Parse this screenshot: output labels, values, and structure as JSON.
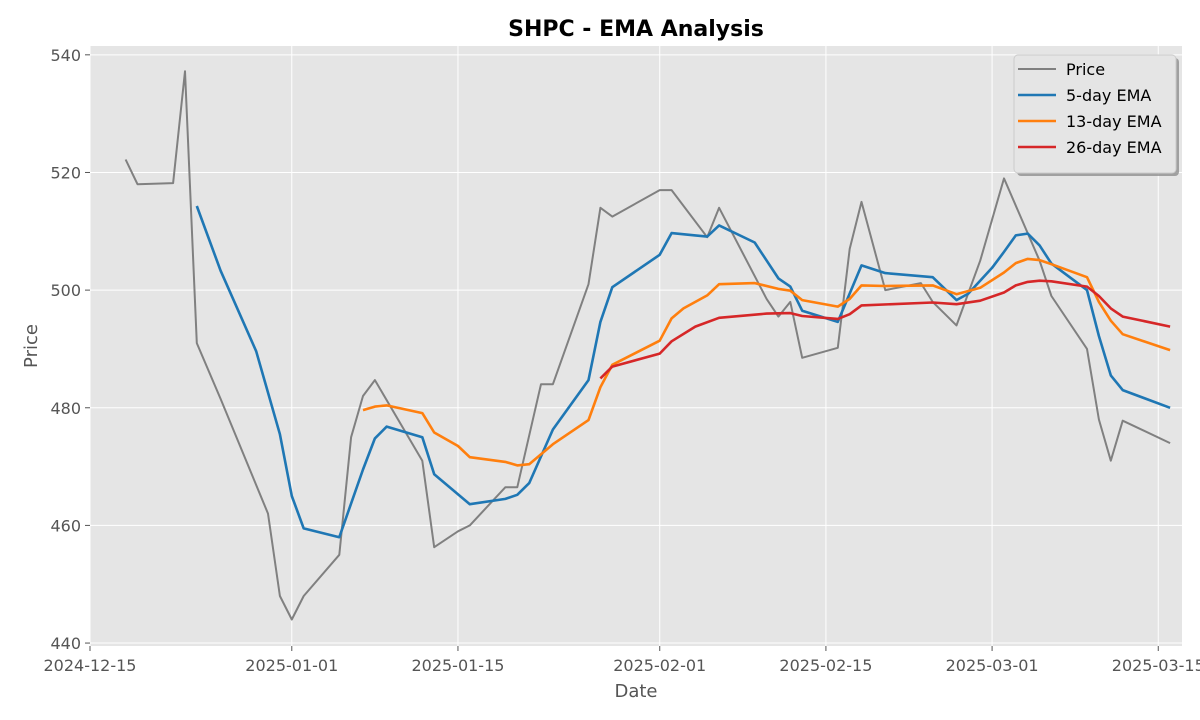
{
  "chart_data": {
    "type": "line",
    "title": "SHPC - EMA Analysis",
    "xlabel": "Date",
    "ylabel": "Price",
    "x_axis": "date",
    "xlim": [
      "2024-12-15",
      "2025-03-17"
    ],
    "ylim": [
      439.5,
      541.5
    ],
    "x_ticks": [
      "2024-12-15",
      "2025-01-01",
      "2025-01-15",
      "2025-02-01",
      "2025-02-15",
      "2025-03-01",
      "2025-03-15"
    ],
    "y_ticks": [
      440,
      460,
      480,
      500,
      520,
      540
    ],
    "grid": true,
    "legend_position": "top-right",
    "background": "#e5e5e5",
    "series": [
      {
        "name": "Price",
        "color": "#808080",
        "points": [
          [
            "2024-12-18",
            522.2
          ],
          [
            "2024-12-19",
            518.0
          ],
          [
            "2024-12-22",
            518.2
          ],
          [
            "2024-12-23",
            537.2
          ],
          [
            "2024-12-24",
            491.0
          ],
          [
            "2024-12-26",
            481.5
          ],
          [
            "2024-12-30",
            462.0
          ],
          [
            "2024-12-31",
            448.0
          ],
          [
            "2025-01-01",
            444.0
          ],
          [
            "2025-01-02",
            448.0
          ],
          [
            "2025-01-05",
            455.0
          ],
          [
            "2025-01-06",
            475.0
          ],
          [
            "2025-01-07",
            482.0
          ],
          [
            "2025-01-08",
            484.7
          ],
          [
            "2025-01-12",
            471.0
          ],
          [
            "2025-01-13",
            456.3
          ],
          [
            "2025-01-15",
            459.0
          ],
          [
            "2025-01-16",
            460.0
          ],
          [
            "2025-01-19",
            466.5
          ],
          [
            "2025-01-20",
            466.5
          ],
          [
            "2025-01-22",
            484.0
          ],
          [
            "2025-01-23",
            484.0
          ],
          [
            "2025-01-26",
            501.0
          ],
          [
            "2025-01-27",
            514.0
          ],
          [
            "2025-01-28",
            512.5
          ],
          [
            "2025-02-01",
            517.0
          ],
          [
            "2025-02-02",
            517.0
          ],
          [
            "2025-02-05",
            509.0
          ],
          [
            "2025-02-06",
            514.0
          ],
          [
            "2025-02-10",
            498.5
          ],
          [
            "2025-02-11",
            495.5
          ],
          [
            "2025-02-12",
            498.0
          ],
          [
            "2025-02-13",
            488.5
          ],
          [
            "2025-02-16",
            490.2
          ],
          [
            "2025-02-17",
            507.0
          ],
          [
            "2025-02-18",
            515.0
          ],
          [
            "2025-02-20",
            500.0
          ],
          [
            "2025-02-23",
            501.2
          ],
          [
            "2025-02-24",
            498.0
          ],
          [
            "2025-02-26",
            494.0
          ],
          [
            "2025-02-27",
            499.5
          ],
          [
            "2025-02-28",
            505.0
          ],
          [
            "2025-03-02",
            519.0
          ],
          [
            "2025-03-05",
            505.0
          ],
          [
            "2025-03-06",
            499.0
          ],
          [
            "2025-03-09",
            490.0
          ],
          [
            "2025-03-10",
            478.0
          ],
          [
            "2025-03-11",
            471.0
          ],
          [
            "2025-03-12",
            477.8
          ],
          [
            "2025-03-16",
            474.0
          ]
        ]
      },
      {
        "name": "5-day EMA",
        "color": "#1f77b4",
        "points": [
          [
            "2024-12-24",
            514.3
          ],
          [
            "2024-12-26",
            503.3
          ],
          [
            "2024-12-29",
            489.6
          ],
          [
            "2024-12-31",
            475.5
          ],
          [
            "2025-01-01",
            465.0
          ],
          [
            "2025-01-02",
            459.5
          ],
          [
            "2025-01-05",
            458.0
          ],
          [
            "2025-01-07",
            469.5
          ],
          [
            "2025-01-08",
            474.8
          ],
          [
            "2025-01-09",
            476.8
          ],
          [
            "2025-01-12",
            475.0
          ],
          [
            "2025-01-13",
            468.7
          ],
          [
            "2025-01-16",
            463.6
          ],
          [
            "2025-01-19",
            464.5
          ],
          [
            "2025-01-20",
            465.2
          ],
          [
            "2025-01-21",
            467.2
          ],
          [
            "2025-01-23",
            476.3
          ],
          [
            "2025-01-26",
            484.7
          ],
          [
            "2025-01-27",
            494.6
          ],
          [
            "2025-01-28",
            500.5
          ],
          [
            "2025-02-01",
            506.0
          ],
          [
            "2025-02-02",
            509.7
          ],
          [
            "2025-02-04",
            509.3
          ],
          [
            "2025-02-05",
            509.1
          ],
          [
            "2025-02-06",
            511.0
          ],
          [
            "2025-02-09",
            508.1
          ],
          [
            "2025-02-11",
            502.0
          ],
          [
            "2025-02-12",
            500.6
          ],
          [
            "2025-02-13",
            496.5
          ],
          [
            "2025-02-16",
            494.6
          ],
          [
            "2025-02-18",
            504.2
          ],
          [
            "2025-02-20",
            502.9
          ],
          [
            "2025-02-24",
            502.2
          ],
          [
            "2025-02-26",
            498.3
          ],
          [
            "2025-02-27",
            499.4
          ],
          [
            "2025-03-01",
            503.8
          ],
          [
            "2025-03-02",
            506.5
          ],
          [
            "2025-03-03",
            509.3
          ],
          [
            "2025-03-04",
            509.6
          ],
          [
            "2025-03-05",
            507.6
          ],
          [
            "2025-03-06",
            504.5
          ],
          [
            "2025-03-09",
            500.0
          ],
          [
            "2025-03-10",
            492.2
          ],
          [
            "2025-03-11",
            485.5
          ],
          [
            "2025-03-12",
            483.0
          ],
          [
            "2025-03-16",
            480.0
          ]
        ]
      },
      {
        "name": "13-day EMA",
        "color": "#ff7f0e",
        "points": [
          [
            "2025-01-07",
            479.6
          ],
          [
            "2025-01-08",
            480.2
          ],
          [
            "2025-01-09",
            480.4
          ],
          [
            "2025-01-12",
            479.1
          ],
          [
            "2025-01-13",
            475.8
          ],
          [
            "2025-01-15",
            473.5
          ],
          [
            "2025-01-16",
            471.6
          ],
          [
            "2025-01-19",
            470.8
          ],
          [
            "2025-01-20",
            470.2
          ],
          [
            "2025-01-21",
            470.4
          ],
          [
            "2025-01-23",
            473.8
          ],
          [
            "2025-01-26",
            477.9
          ],
          [
            "2025-01-27",
            483.5
          ],
          [
            "2025-01-28",
            487.3
          ],
          [
            "2025-02-01",
            491.4
          ],
          [
            "2025-02-02",
            495.2
          ],
          [
            "2025-02-03",
            496.9
          ],
          [
            "2025-02-05",
            499.1
          ],
          [
            "2025-02-06",
            501.0
          ],
          [
            "2025-02-09",
            501.2
          ],
          [
            "2025-02-11",
            500.2
          ],
          [
            "2025-02-12",
            499.9
          ],
          [
            "2025-02-13",
            498.3
          ],
          [
            "2025-02-16",
            497.2
          ],
          [
            "2025-02-17",
            498.5
          ],
          [
            "2025-02-18",
            500.8
          ],
          [
            "2025-02-20",
            500.7
          ],
          [
            "2025-02-24",
            500.8
          ],
          [
            "2025-02-26",
            499.3
          ],
          [
            "2025-02-28",
            500.4
          ],
          [
            "2025-03-02",
            503.0
          ],
          [
            "2025-03-03",
            504.6
          ],
          [
            "2025-03-04",
            505.3
          ],
          [
            "2025-03-05",
            505.1
          ],
          [
            "2025-03-06",
            504.4
          ],
          [
            "2025-03-09",
            502.2
          ],
          [
            "2025-03-10",
            498.0
          ],
          [
            "2025-03-11",
            494.8
          ],
          [
            "2025-03-12",
            492.5
          ],
          [
            "2025-03-16",
            489.8
          ]
        ]
      },
      {
        "name": "26-day EMA",
        "color": "#d62728",
        "points": [
          [
            "2025-01-27",
            485.0
          ],
          [
            "2025-01-28",
            487.0
          ],
          [
            "2025-02-01",
            489.2
          ],
          [
            "2025-02-02",
            491.3
          ],
          [
            "2025-02-04",
            493.8
          ],
          [
            "2025-02-06",
            495.3
          ],
          [
            "2025-02-10",
            496.0
          ],
          [
            "2025-02-12",
            496.1
          ],
          [
            "2025-02-13",
            495.6
          ],
          [
            "2025-02-16",
            495.1
          ],
          [
            "2025-02-17",
            495.9
          ],
          [
            "2025-02-18",
            497.4
          ],
          [
            "2025-02-24",
            497.9
          ],
          [
            "2025-02-26",
            497.6
          ],
          [
            "2025-02-28",
            498.2
          ],
          [
            "2025-03-02",
            499.6
          ],
          [
            "2025-03-03",
            500.8
          ],
          [
            "2025-03-04",
            501.4
          ],
          [
            "2025-03-05",
            501.6
          ],
          [
            "2025-03-06",
            501.5
          ],
          [
            "2025-03-09",
            500.6
          ],
          [
            "2025-03-10",
            499.0
          ],
          [
            "2025-03-11",
            496.9
          ],
          [
            "2025-03-12",
            495.5
          ],
          [
            "2025-03-16",
            493.8
          ]
        ]
      }
    ]
  }
}
